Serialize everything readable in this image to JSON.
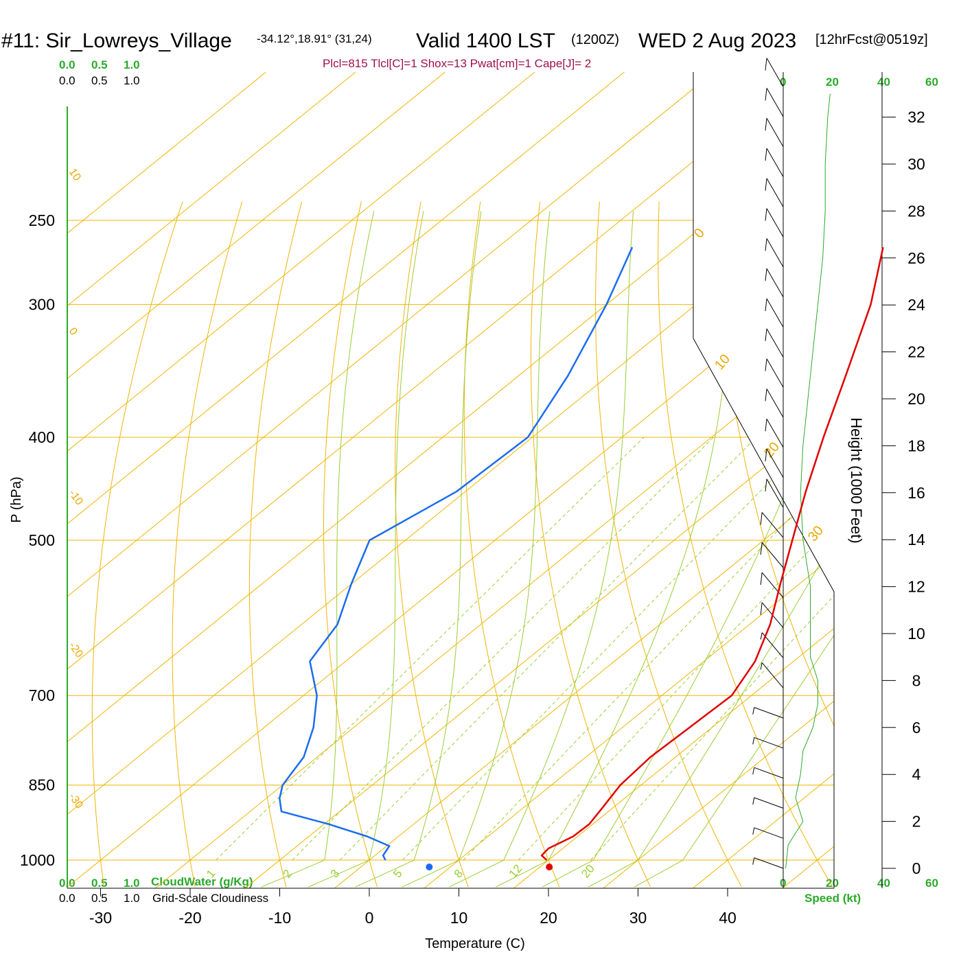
{
  "header": {
    "station": "#11: Sir_Lowreys_Village",
    "coords": "-34.12°,18.91° (31,24)",
    "valid": "Valid 1400 LST",
    "utc": "(1200Z)",
    "date": "WED 2 Aug 2023",
    "forecast": "[12hrFcst@0519z]"
  },
  "parcel_info": "Plcl=815 Tlcl[C]=1 Shox=13 Pwat[cm]=1 Cape[J]= 2",
  "left_scale": {
    "top_green": [
      "0.0",
      "0.5",
      "1.0"
    ],
    "top_black": [
      "0.0",
      "0.5",
      "1.0"
    ],
    "bottom_green": [
      "0.0",
      "0.5",
      "1.0"
    ],
    "bottom_black": [
      "0.0",
      "0.5",
      "1.0"
    ],
    "cloudwater_label": "CloudWater (g/Kg)",
    "cloudiness_label": "Grid-Scale Cloudiness"
  },
  "speed_scale": {
    "ticks": [
      "0",
      "20",
      "40",
      "60"
    ],
    "label": "Speed (kt)"
  },
  "colors": {
    "temperature": "#e00000",
    "dewpoint": "#1a6cf0",
    "isotherm": "#f0b400",
    "dry_adiabat": "#f0b400",
    "moist_adiabat": "#9acd32",
    "mixing_ratio": "#9acd32",
    "wind_speed": "#2aaa2a",
    "header_green": "#2aaa2a",
    "parcel_text": "#a0104a"
  },
  "chart_data": {
    "type": "skew-t",
    "xlabel": "Temperature (C)",
    "ylabel": "P (hPa)",
    "y2label": "Height (1000 Feet)",
    "x_ticks": [
      -30,
      -20,
      -10,
      0,
      10,
      20,
      30,
      40
    ],
    "pressure_ticks": [
      250,
      300,
      400,
      500,
      700,
      850,
      1000
    ],
    "height_ticks": [
      0,
      2,
      4,
      6,
      8,
      10,
      12,
      14,
      16,
      18,
      20,
      22,
      24,
      26,
      28,
      30,
      32
    ],
    "isotherm_labels": [
      30,
      20,
      10,
      0,
      -10,
      -20,
      -30
    ],
    "mixing_ratio_labels": [
      1,
      2,
      3,
      5,
      8,
      12,
      20
    ],
    "temperature": [
      {
        "p": 1000,
        "t": 19.8
      },
      {
        "p": 990,
        "t": 18.6
      },
      {
        "p": 975,
        "t": 18.4
      },
      {
        "p": 950,
        "t": 19.5
      },
      {
        "p": 925,
        "t": 19.6
      },
      {
        "p": 900,
        "t": 19.0
      },
      {
        "p": 850,
        "t": 17.7
      },
      {
        "p": 800,
        "t": 17.2
      },
      {
        "p": 750,
        "t": 17.5
      },
      {
        "p": 700,
        "t": 17.8
      },
      {
        "p": 650,
        "t": 15.7
      },
      {
        "p": 600,
        "t": 12.3
      },
      {
        "p": 550,
        "t": 7.9
      },
      {
        "p": 500,
        "t": 3.2
      },
      {
        "p": 450,
        "t": -2.0
      },
      {
        "p": 400,
        "t": -7.5
      },
      {
        "p": 350,
        "t": -13.5
      },
      {
        "p": 300,
        "t": -20.5
      },
      {
        "p": 265,
        "t": -27.0
      }
    ],
    "dewpoint": [
      {
        "p": 1000,
        "t": 1.8
      },
      {
        "p": 990,
        "t": 0.9
      },
      {
        "p": 970,
        "t": 0.3
      },
      {
        "p": 950,
        "t": -3.5
      },
      {
        "p": 925,
        "t": -9.5
      },
      {
        "p": 900,
        "t": -16.5
      },
      {
        "p": 875,
        "t": -18.5
      },
      {
        "p": 850,
        "t": -20.0
      },
      {
        "p": 800,
        "t": -21.5
      },
      {
        "p": 750,
        "t": -24.5
      },
      {
        "p": 700,
        "t": -28.5
      },
      {
        "p": 650,
        "t": -34.0
      },
      {
        "p": 600,
        "t": -36.0
      },
      {
        "p": 550,
        "t": -40.0
      },
      {
        "p": 500,
        "t": -44.0
      },
      {
        "p": 450,
        "t": -41.0
      },
      {
        "p": 400,
        "t": -40.5
      },
      {
        "p": 350,
        "t": -44.5
      },
      {
        "p": 300,
        "t": -50.0
      },
      {
        "p": 265,
        "t": -55.0
      }
    ],
    "surface_temperature": 20.6,
    "surface_dewpoint": 7.2,
    "wind_speed_profile": [
      {
        "ft": 0,
        "kt": 1
      },
      {
        "ft": 1000,
        "kt": 2
      },
      {
        "ft": 2000,
        "kt": 8
      },
      {
        "ft": 3000,
        "kt": 5
      },
      {
        "ft": 4000,
        "kt": 7
      },
      {
        "ft": 5000,
        "kt": 8
      },
      {
        "ft": 6000,
        "kt": 12
      },
      {
        "ft": 7000,
        "kt": 14
      },
      {
        "ft": 8000,
        "kt": 14
      },
      {
        "ft": 9000,
        "kt": 11
      },
      {
        "ft": 10000,
        "kt": 11
      },
      {
        "ft": 12000,
        "kt": 11
      },
      {
        "ft": 14000,
        "kt": 8
      },
      {
        "ft": 16000,
        "kt": 7
      },
      {
        "ft": 18000,
        "kt": 8
      },
      {
        "ft": 20000,
        "kt": 10
      },
      {
        "ft": 22000,
        "kt": 12
      },
      {
        "ft": 24000,
        "kt": 14
      },
      {
        "ft": 26000,
        "kt": 16
      },
      {
        "ft": 28000,
        "kt": 17
      },
      {
        "ft": 30000,
        "kt": 17
      },
      {
        "ft": 32000,
        "kt": 18
      },
      {
        "ft": 33000,
        "kt": 19
      }
    ]
  }
}
